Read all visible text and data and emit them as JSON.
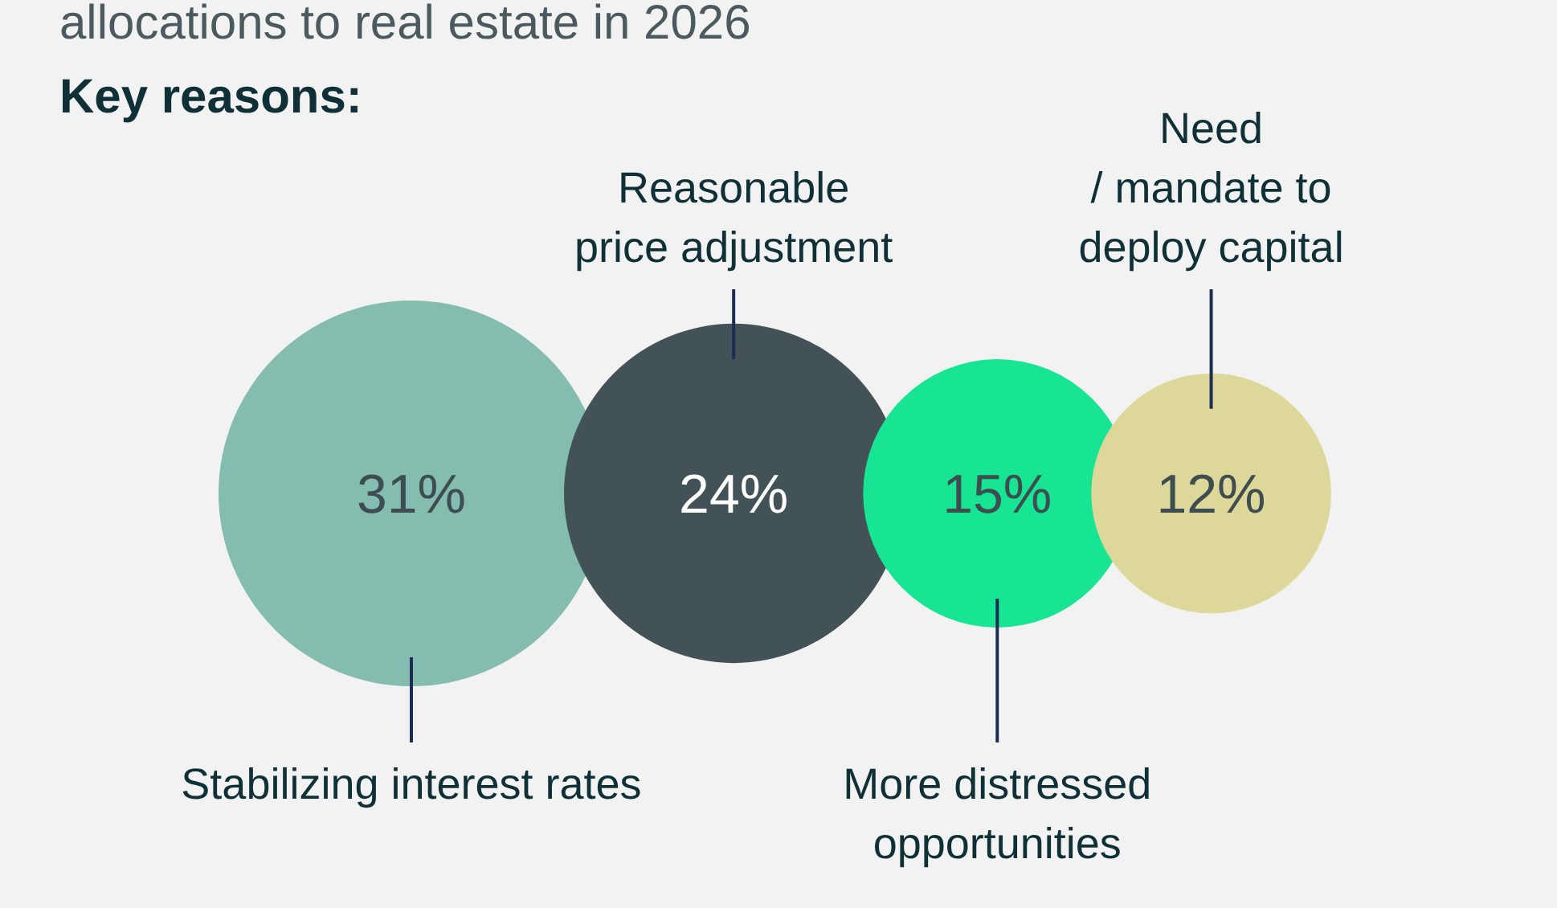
{
  "chart_data": {
    "type": "other",
    "subtitle": "allocations to real estate in 2026",
    "title": "Key reasons:",
    "categories": [
      "Stabilizing interest rates",
      "Reasonable price adjustment",
      "More distressed opportunities",
      "Need / mandate to deploy capital"
    ],
    "values": [
      31,
      24,
      15,
      12
    ],
    "value_labels": [
      "31%",
      "24%",
      "15%",
      "12%"
    ],
    "colors": [
      "#84bcaf",
      "#425256",
      "#17e593",
      "#ddd89a"
    ]
  }
}
